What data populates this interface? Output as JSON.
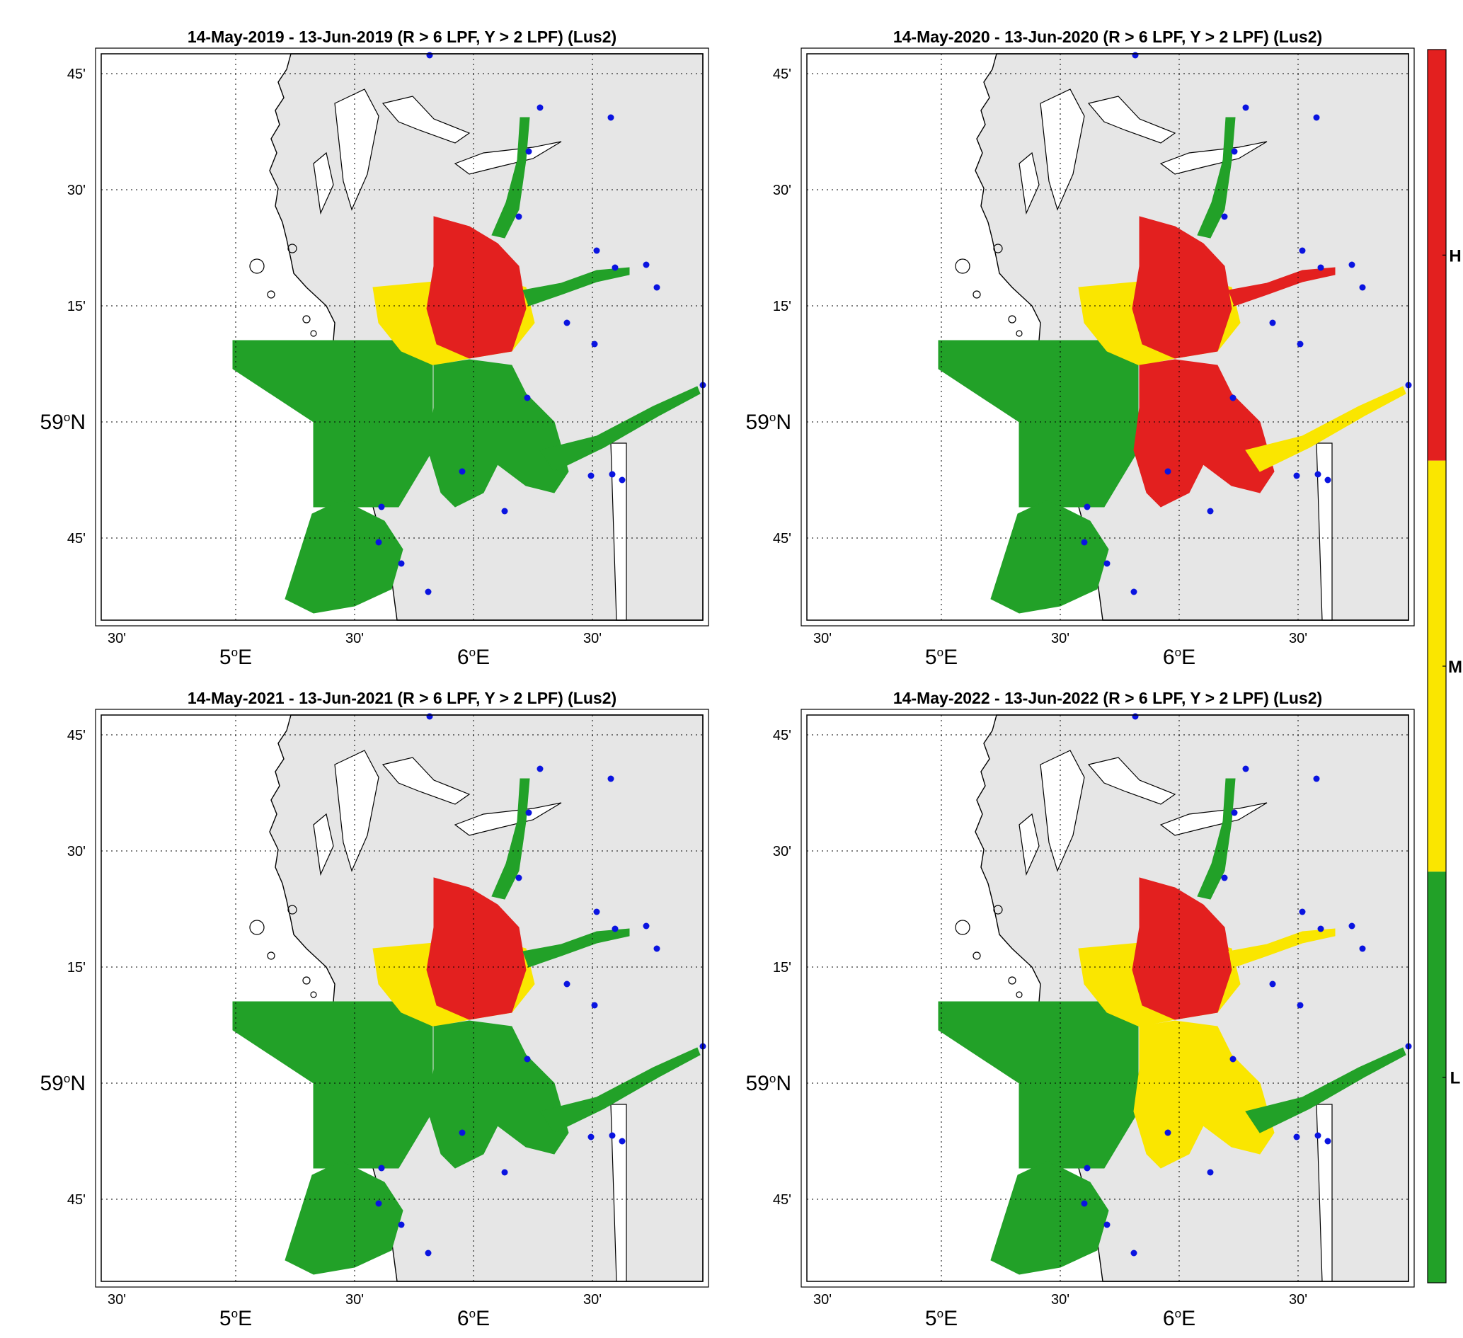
{
  "colors": {
    "H": "#e3201f",
    "M": "#fae600",
    "L": "#22a128",
    "land": "#e6e6e6",
    "station": "#0a14e0"
  },
  "maps": [
    {
      "title": "14-May-2019  - 13-Jun-2019  (R > 6 LPF, Y > 2 LPF) (Lus2)",
      "zones": {
        "offshore": "L",
        "south": "L",
        "central": "M",
        "northeast": "H",
        "northArm": "L",
        "eastArm": "L",
        "innerSouth": "L",
        "southeastArm": "L"
      }
    },
    {
      "title": "14-May-2020  - 13-Jun-2020  (R > 6 LPF, Y > 2 LPF) (Lus2)",
      "zones": {
        "offshore": "L",
        "south": "L",
        "central": "M",
        "northeast": "H",
        "northArm": "L",
        "eastArm": "H",
        "innerSouth": "H",
        "southeastArm": "M"
      }
    },
    {
      "title": "14-May-2021  - 13-Jun-2021  (R > 6 LPF, Y > 2 LPF) (Lus2)",
      "zones": {
        "offshore": "L",
        "south": "L",
        "central": "M",
        "northeast": "H",
        "northArm": "L",
        "eastArm": "L",
        "innerSouth": "L",
        "southeastArm": "L"
      }
    },
    {
      "title": "14-May-2022  - 13-Jun-2022  (R > 6 LPF, Y > 2 LPF) (Lus2)",
      "zones": {
        "offshore": "L",
        "south": "L",
        "central": "M",
        "northeast": "H",
        "northArm": "L",
        "eastArm": "M",
        "innerSouth": "M",
        "southeastArm": "L"
      }
    }
  ],
  "axes": {
    "lat_labels": [
      "45'",
      "30'",
      "15'",
      "59°N",
      "45'"
    ],
    "lon_labels": [
      "30'",
      "5°E",
      "30'",
      "6°E",
      "30'"
    ]
  },
  "colorbar": {
    "labels": [
      "H",
      "M",
      "L"
    ]
  }
}
